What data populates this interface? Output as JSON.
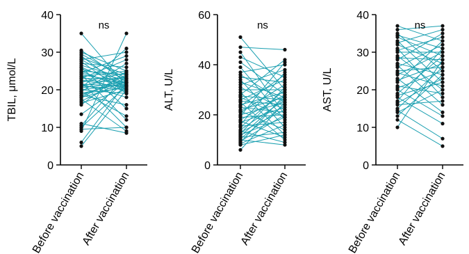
{
  "colors": {
    "line": "#1a9fb0",
    "point": "#111111"
  },
  "chart_data": [
    {
      "type": "line",
      "ylabel": "TBIL, μmol/L",
      "categories": [
        "Before vaccination",
        "After vaccination"
      ],
      "ylim": [
        0,
        40
      ],
      "yticks": [
        "0",
        "10",
        "20",
        "30",
        "40"
      ],
      "annotation": "ns",
      "before_values": [
        35,
        30.5,
        30,
        29.5,
        29,
        28.5,
        28,
        28,
        27.5,
        27,
        26.5,
        26,
        26,
        25.5,
        25,
        25,
        24.5,
        24.5,
        24,
        24,
        23.5,
        23.5,
        23,
        23,
        22.5,
        22.5,
        22,
        22,
        21.5,
        21.5,
        21,
        21,
        20.5,
        20.5,
        20,
        20,
        19.5,
        19.5,
        19,
        19,
        18.5,
        18.5,
        18,
        18,
        17.5,
        17,
        16.5,
        16,
        13.5,
        11,
        10.5,
        10,
        9.5,
        9,
        6,
        5
      ],
      "after_values": [
        21,
        22,
        25,
        23,
        20,
        24,
        30,
        21.5,
        19,
        26,
        23,
        21,
        15,
        22.5,
        24,
        20,
        29,
        21,
        12,
        22,
        25,
        19.5,
        23,
        28,
        20.5,
        22,
        10,
        24.5,
        21,
        18,
        23.5,
        20,
        31,
        22,
        21.5,
        19,
        27,
        13,
        22,
        20.5,
        23,
        16,
        24,
        21,
        9,
        22.5,
        20,
        25,
        22,
        8.5,
        24,
        21,
        10,
        35,
        22,
        20
      ]
    },
    {
      "type": "line",
      "ylabel": "ALT, U/L",
      "categories": [
        "Before vaccination",
        "After vaccination"
      ],
      "ylim": [
        0,
        60
      ],
      "yticks": [
        "0",
        "20",
        "40",
        "60"
      ],
      "annotation": "ns",
      "before_values": [
        51,
        47,
        45,
        43,
        41,
        39,
        37,
        36,
        35,
        34,
        33,
        32,
        31,
        30,
        29,
        28,
        27.5,
        27,
        26,
        25.5,
        25,
        24,
        23.5,
        23,
        22,
        21.5,
        21,
        20,
        19.5,
        19,
        18,
        17.5,
        17,
        16,
        15.5,
        15,
        14,
        13.5,
        13,
        12.5,
        12,
        11.5,
        11,
        10.5,
        10,
        9.5,
        9,
        8.5,
        8,
        6
      ],
      "after_values": [
        30,
        46,
        20,
        35,
        28,
        18,
        40,
        25,
        33,
        15,
        27,
        38,
        22,
        30,
        12,
        42,
        26,
        19,
        34,
        24,
        10,
        29,
        36,
        21,
        27,
        14,
        32,
        25,
        41,
        20,
        28,
        11,
        23,
        37,
        17,
        30,
        26,
        9,
        22,
        31,
        19,
        27,
        13,
        24,
        8,
        20,
        28,
        16,
        12,
        25
      ]
    },
    {
      "type": "line",
      "ylabel": "AST, U/L",
      "categories": [
        "Before vaccination",
        "After vaccination"
      ],
      "ylim": [
        0,
        40
      ],
      "yticks": [
        "0",
        "10",
        "20",
        "30",
        "40"
      ],
      "annotation": "ns",
      "before_values": [
        37,
        36,
        35,
        34.5,
        34,
        33,
        32.5,
        32,
        31,
        30.5,
        30,
        29,
        28.5,
        28,
        27,
        26.5,
        26,
        25,
        24.5,
        24,
        23,
        22.5,
        22,
        21,
        20.5,
        20,
        19,
        18.5,
        18,
        17,
        16.5,
        16,
        15,
        14.5,
        14,
        13,
        12,
        10
      ],
      "after_values": [
        33,
        37,
        25,
        31,
        29,
        22,
        36,
        27,
        18,
        34,
        30,
        20,
        28,
        35,
        24,
        16,
        32,
        26,
        21,
        30,
        14,
        27,
        33,
        19,
        25,
        13,
        29,
        22,
        11,
        31,
        23,
        17,
        26,
        7,
        20,
        24,
        5,
        28
      ]
    }
  ]
}
